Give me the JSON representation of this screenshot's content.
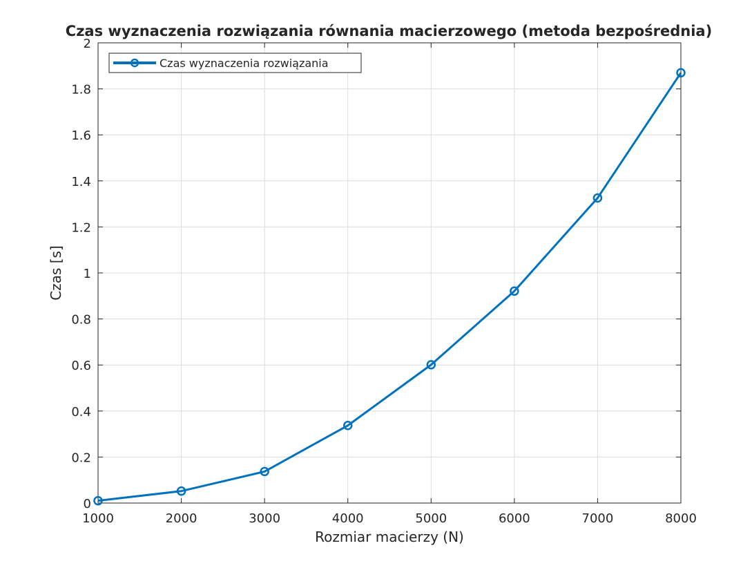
{
  "chart_data": {
    "type": "line",
    "title": "Czas wyznaczenia rozwiązania równania macierzowego (metoda bezpośrednia)",
    "xlabel": "Rozmiar macierzy (N)",
    "ylabel": "Czas [s]",
    "xlim": [
      1000,
      8000
    ],
    "ylim": [
      0,
      2
    ],
    "xticks": [
      1000,
      2000,
      3000,
      4000,
      5000,
      6000,
      7000,
      8000
    ],
    "xtick_labels": [
      "1000",
      "2000",
      "3000",
      "4000",
      "5000",
      "6000",
      "7000",
      "8000"
    ],
    "yticks": [
      0,
      0.2,
      0.4,
      0.6,
      0.8,
      1,
      1.2,
      1.4,
      1.6,
      1.8,
      2
    ],
    "ytick_labels": [
      "0",
      "0.2",
      "0.4",
      "0.6",
      "0.8",
      "1",
      "1.2",
      "1.4",
      "1.6",
      "1.8",
      "2"
    ],
    "grid": true,
    "legend_position": "top-left",
    "series": [
      {
        "name": "Czas wyznaczenia rozwiązania",
        "color": "#0072BD",
        "marker": "circle",
        "x": [
          1000,
          2000,
          3000,
          4000,
          5000,
          6000,
          7000,
          8000
        ],
        "y": [
          0.01,
          0.052,
          0.137,
          0.337,
          0.601,
          0.921,
          1.326,
          1.87
        ]
      }
    ]
  }
}
